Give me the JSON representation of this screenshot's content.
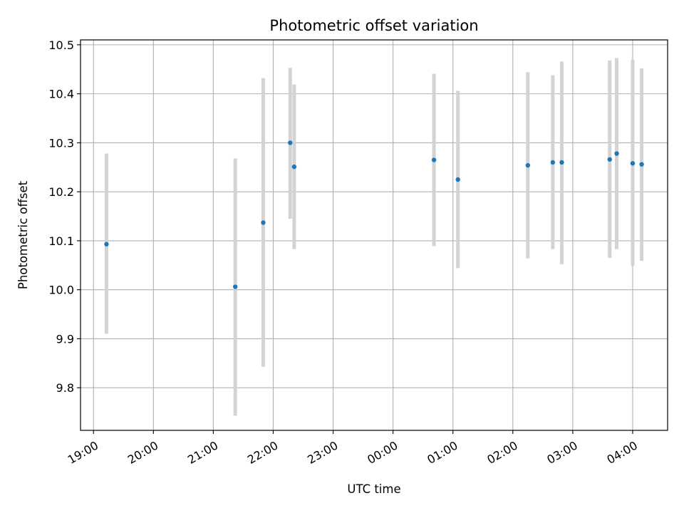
{
  "chart_data": {
    "type": "scatter",
    "title": "Photometric offset variation",
    "xlabel": "UTC time",
    "ylabel": "Photometric offset",
    "grid": true,
    "x_tick_labels": [
      "19:00",
      "20:00",
      "21:00",
      "22:00",
      "23:00",
      "00:00",
      "01:00",
      "02:00",
      "03:00",
      "04:00"
    ],
    "y_tick_labels": [
      "9.8",
      "9.9",
      "10.0",
      "10.1",
      "10.2",
      "10.3",
      "10.4",
      "10.5"
    ],
    "x_ticks": [
      "19:00",
      "20:00",
      "21:00",
      "22:00",
      "23:00",
      "00:00",
      "01:00",
      "02:00",
      "03:00",
      "04:00"
    ],
    "y_ticks": [
      9.8,
      9.9,
      10.0,
      10.1,
      10.2,
      10.3,
      10.4,
      10.5
    ],
    "xlim": [
      "18:47",
      "04:35"
    ],
    "ylim": [
      9.713,
      10.51
    ],
    "points": [
      {
        "x": "19:13",
        "y": 10.093,
        "low": 9.91,
        "high": 10.278
      },
      {
        "x": "21:22",
        "y": 10.006,
        "low": 9.743,
        "high": 10.268
      },
      {
        "x": "21:50",
        "y": 10.137,
        "low": 9.843,
        "high": 10.432
      },
      {
        "x": "22:17",
        "y": 10.3,
        "low": 10.145,
        "high": 10.453
      },
      {
        "x": "22:21",
        "y": 10.251,
        "low": 10.083,
        "high": 10.419
      },
      {
        "x": "00:41",
        "y": 10.265,
        "low": 10.089,
        "high": 10.441
      },
      {
        "x": "01:05",
        "y": 10.225,
        "low": 10.044,
        "high": 10.406
      },
      {
        "x": "02:15",
        "y": 10.254,
        "low": 10.064,
        "high": 10.444
      },
      {
        "x": "02:40",
        "y": 10.26,
        "low": 10.083,
        "high": 10.438
      },
      {
        "x": "02:49",
        "y": 10.26,
        "low": 10.052,
        "high": 10.466
      },
      {
        "x": "03:37",
        "y": 10.266,
        "low": 10.065,
        "high": 10.468
      },
      {
        "x": "03:44",
        "y": 10.278,
        "low": 10.083,
        "high": 10.473
      },
      {
        "x": "04:00",
        "y": 10.258,
        "low": 10.049,
        "high": 10.47
      },
      {
        "x": "04:09",
        "y": 10.256,
        "low": 10.059,
        "high": 10.452
      }
    ],
    "colors": {
      "point": "#1f77b4",
      "errorbar": "#d3d3d3",
      "grid": "#b0b0b0",
      "axes": "#000000"
    }
  }
}
